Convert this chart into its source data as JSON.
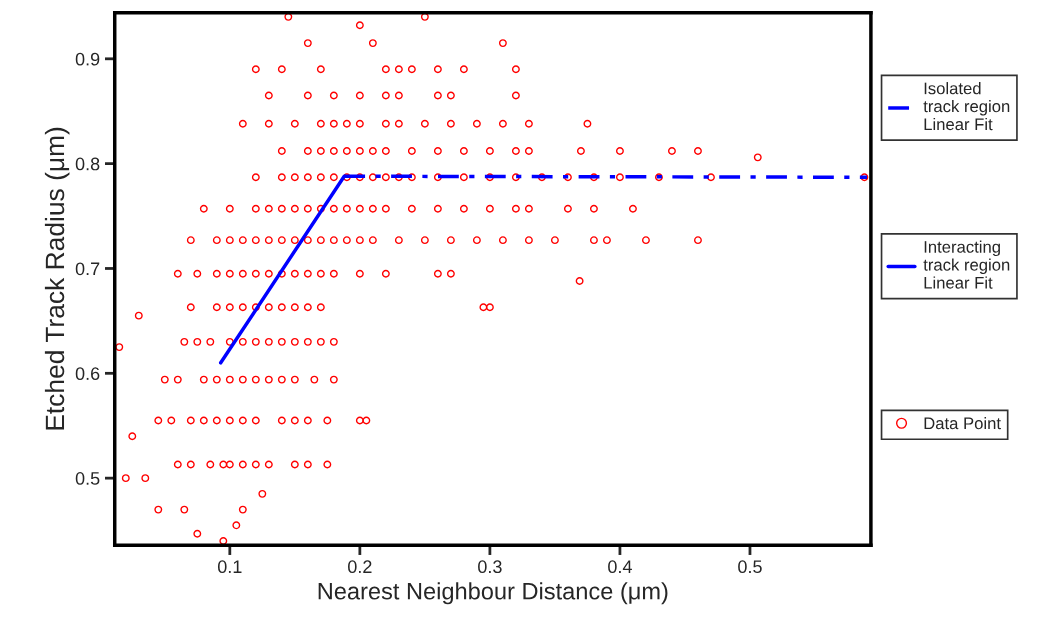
{
  "chart_data": {
    "type": "scatter",
    "xlabel": "Nearest Neighbour Distance (μm)",
    "ylabel": "Etched Track Radius (μm)",
    "xlim": [
      0.0115,
      0.593
    ],
    "ylim": [
      0.436,
      0.944
    ],
    "xticks": [
      0.1,
      0.2,
      0.3,
      0.4,
      0.5
    ],
    "yticks": [
      0.5,
      0.6,
      0.7,
      0.8,
      0.9
    ],
    "legend": "right",
    "grid": false,
    "series": [
      {
        "name": "Isolated\ntrack region\nLinear Fit",
        "type": "line",
        "line_style": "dashdot",
        "marker": "none",
        "color": "#0000ff",
        "x": [
          0.188,
          0.59
        ],
        "values": [
          0.788,
          0.787
        ]
      },
      {
        "name": "Interacting\ntrack region\nLinear Fit",
        "type": "line",
        "line_style": "solid",
        "marker": "none",
        "color": "#0000ff",
        "x": [
          0.093,
          0.188
        ],
        "values": [
          0.61,
          0.788
        ]
      },
      {
        "name": "Data Point",
        "marker": "circle",
        "color": "#ff0000",
        "x": [
          0.06,
          0.07,
          0.085,
          0.095,
          0.1,
          0.11,
          0.12,
          0.13,
          0.15,
          0.16,
          0.175,
          0.045,
          0.055,
          0.07,
          0.08,
          0.09,
          0.1,
          0.11,
          0.12,
          0.14,
          0.15,
          0.16,
          0.175,
          0.205,
          0.05,
          0.06,
          0.08,
          0.09,
          0.1,
          0.11,
          0.12,
          0.13,
          0.14,
          0.15,
          0.165,
          0.18,
          0.065,
          0.075,
          0.085,
          0.1,
          0.11,
          0.12,
          0.13,
          0.14,
          0.15,
          0.16,
          0.17,
          0.18,
          0.07,
          0.09,
          0.1,
          0.11,
          0.12,
          0.13,
          0.14,
          0.15,
          0.16,
          0.17,
          0.295,
          0.3,
          0.06,
          0.075,
          0.09,
          0.1,
          0.11,
          0.12,
          0.13,
          0.14,
          0.15,
          0.16,
          0.17,
          0.18,
          0.2,
          0.22,
          0.26,
          0.27,
          0.07,
          0.09,
          0.1,
          0.11,
          0.12,
          0.13,
          0.14,
          0.15,
          0.16,
          0.17,
          0.18,
          0.19,
          0.2,
          0.21,
          0.23,
          0.25,
          0.27,
          0.29,
          0.31,
          0.33,
          0.35,
          0.38,
          0.39,
          0.42,
          0.46,
          0.08,
          0.1,
          0.12,
          0.13,
          0.14,
          0.15,
          0.16,
          0.17,
          0.18,
          0.19,
          0.2,
          0.21,
          0.22,
          0.24,
          0.26,
          0.28,
          0.3,
          0.32,
          0.33,
          0.36,
          0.38,
          0.41,
          0.12,
          0.14,
          0.15,
          0.16,
          0.17,
          0.18,
          0.19,
          0.2,
          0.21,
          0.22,
          0.23,
          0.24,
          0.26,
          0.28,
          0.3,
          0.32,
          0.34,
          0.36,
          0.38,
          0.4,
          0.43,
          0.47,
          0.588,
          0.14,
          0.16,
          0.17,
          0.18,
          0.19,
          0.2,
          0.21,
          0.22,
          0.24,
          0.26,
          0.28,
          0.3,
          0.32,
          0.33,
          0.37,
          0.4,
          0.44,
          0.46,
          0.11,
          0.13,
          0.15,
          0.17,
          0.18,
          0.19,
          0.2,
          0.22,
          0.23,
          0.25,
          0.27,
          0.29,
          0.31,
          0.33,
          0.375,
          0.13,
          0.16,
          0.18,
          0.2,
          0.22,
          0.23,
          0.26,
          0.27,
          0.32,
          0.12,
          0.14,
          0.17,
          0.22,
          0.23,
          0.24,
          0.26,
          0.28,
          0.32,
          0.506,
          0.16,
          0.21,
          0.31,
          0.145,
          0.25,
          0.2,
          0.369,
          0.095,
          0.075,
          0.105,
          0.11,
          0.045,
          0.065,
          0.02,
          0.035,
          0.125,
          0.025,
          0.03,
          0.015,
          0.2
        ],
        "values": [
          0.513,
          0.513,
          0.513,
          0.513,
          0.513,
          0.513,
          0.513,
          0.513,
          0.513,
          0.513,
          0.513,
          0.555,
          0.555,
          0.555,
          0.555,
          0.555,
          0.555,
          0.555,
          0.555,
          0.555,
          0.555,
          0.555,
          0.555,
          0.555,
          0.594,
          0.594,
          0.594,
          0.594,
          0.594,
          0.594,
          0.594,
          0.594,
          0.594,
          0.594,
          0.594,
          0.594,
          0.63,
          0.63,
          0.63,
          0.63,
          0.63,
          0.63,
          0.63,
          0.63,
          0.63,
          0.63,
          0.63,
          0.63,
          0.663,
          0.663,
          0.663,
          0.663,
          0.663,
          0.663,
          0.663,
          0.663,
          0.663,
          0.663,
          0.663,
          0.663,
          0.695,
          0.695,
          0.695,
          0.695,
          0.695,
          0.695,
          0.695,
          0.695,
          0.695,
          0.695,
          0.695,
          0.695,
          0.695,
          0.695,
          0.695,
          0.695,
          0.727,
          0.727,
          0.727,
          0.727,
          0.727,
          0.727,
          0.727,
          0.727,
          0.727,
          0.727,
          0.727,
          0.727,
          0.727,
          0.727,
          0.727,
          0.727,
          0.727,
          0.727,
          0.727,
          0.727,
          0.727,
          0.727,
          0.727,
          0.727,
          0.727,
          0.757,
          0.757,
          0.757,
          0.757,
          0.757,
          0.757,
          0.757,
          0.757,
          0.757,
          0.757,
          0.757,
          0.757,
          0.757,
          0.757,
          0.757,
          0.757,
          0.757,
          0.757,
          0.757,
          0.757,
          0.757,
          0.757,
          0.787,
          0.787,
          0.787,
          0.787,
          0.787,
          0.787,
          0.787,
          0.787,
          0.787,
          0.787,
          0.787,
          0.787,
          0.787,
          0.787,
          0.787,
          0.787,
          0.787,
          0.787,
          0.787,
          0.787,
          0.787,
          0.787,
          0.787,
          0.812,
          0.812,
          0.812,
          0.812,
          0.812,
          0.812,
          0.812,
          0.812,
          0.812,
          0.812,
          0.812,
          0.812,
          0.812,
          0.812,
          0.812,
          0.812,
          0.812,
          0.812,
          0.838,
          0.838,
          0.838,
          0.838,
          0.838,
          0.838,
          0.838,
          0.838,
          0.838,
          0.838,
          0.838,
          0.838,
          0.838,
          0.838,
          0.838,
          0.865,
          0.865,
          0.865,
          0.865,
          0.865,
          0.865,
          0.865,
          0.865,
          0.865,
          0.89,
          0.89,
          0.89,
          0.89,
          0.89,
          0.89,
          0.89,
          0.89,
          0.89,
          0.806,
          0.915,
          0.915,
          0.915,
          0.94,
          0.94,
          0.932,
          0.688,
          0.44,
          0.447,
          0.455,
          0.47,
          0.47,
          0.47,
          0.5,
          0.5,
          0.485,
          0.54,
          0.655,
          0.625,
          0.555
        ]
      }
    ]
  }
}
